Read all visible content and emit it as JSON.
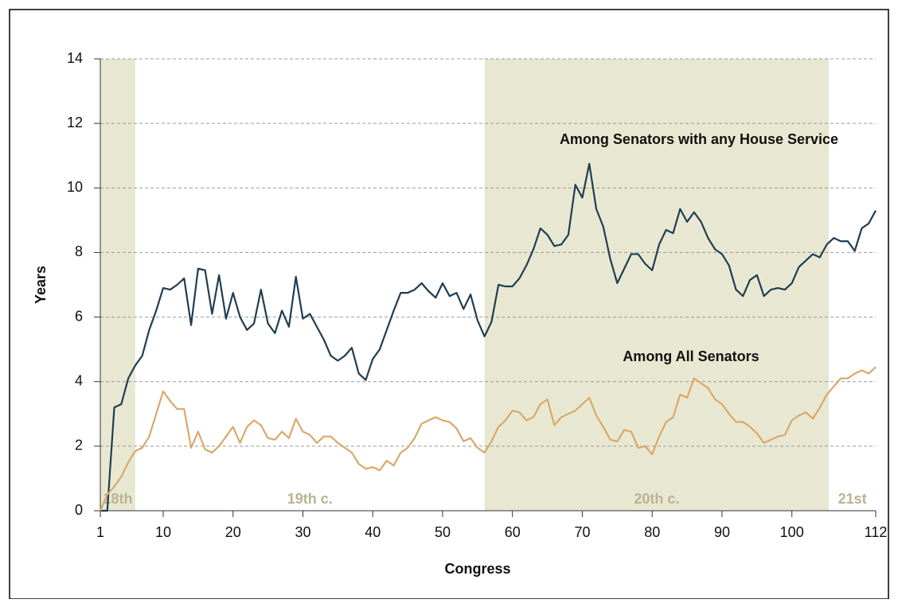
{
  "chart_data": {
    "type": "line",
    "x_label": "Congress",
    "y_label": "Years",
    "x": [
      1,
      2,
      3,
      4,
      5,
      6,
      7,
      8,
      9,
      10,
      11,
      12,
      13,
      14,
      15,
      16,
      17,
      18,
      19,
      20,
      21,
      22,
      23,
      24,
      25,
      26,
      27,
      28,
      29,
      30,
      31,
      32,
      33,
      34,
      35,
      36,
      37,
      38,
      39,
      40,
      41,
      42,
      43,
      44,
      45,
      46,
      47,
      48,
      49,
      50,
      51,
      52,
      53,
      54,
      55,
      56,
      57,
      58,
      59,
      60,
      61,
      62,
      63,
      64,
      65,
      66,
      67,
      68,
      69,
      70,
      71,
      72,
      73,
      74,
      75,
      76,
      77,
      78,
      79,
      80,
      81,
      82,
      83,
      84,
      85,
      86,
      87,
      88,
      89,
      90,
      91,
      92,
      93,
      94,
      95,
      96,
      97,
      98,
      99,
      100,
      101,
      102,
      103,
      104,
      105,
      106,
      107,
      108,
      109,
      110,
      111,
      112
    ],
    "series": [
      {
        "name": "Among Senators with any House Service",
        "color": "#1f3d52",
        "values": [
          0,
          0,
          3.2,
          3.3,
          4.1,
          4.5,
          4.8,
          5.6,
          6.2,
          6.9,
          6.85,
          7.0,
          7.2,
          5.75,
          7.5,
          7.45,
          6.1,
          7.3,
          5.95,
          6.75,
          6.0,
          5.6,
          5.8,
          6.85,
          5.8,
          5.5,
          6.2,
          5.7,
          7.25,
          5.95,
          6.1,
          5.7,
          5.3,
          4.8,
          4.65,
          4.8,
          5.05,
          4.25,
          4.05,
          4.7,
          5.0,
          5.6,
          6.2,
          6.75,
          6.75,
          6.85,
          7.05,
          6.8,
          6.6,
          7.05,
          6.65,
          6.75,
          6.25,
          6.7,
          5.9,
          5.4,
          5.85,
          7.0,
          6.95,
          6.95,
          7.2,
          7.6,
          8.1,
          8.75,
          8.55,
          8.2,
          8.25,
          8.55,
          10.1,
          9.7,
          10.75,
          9.35,
          8.8,
          7.8,
          7.05,
          7.5,
          7.95,
          7.95,
          7.65,
          7.45,
          8.25,
          8.7,
          8.6,
          9.35,
          8.95,
          9.25,
          8.95,
          8.45,
          8.1,
          7.95,
          7.6,
          6.85,
          6.65,
          7.15,
          7.3,
          6.65,
          6.85,
          6.9,
          6.85,
          7.05,
          7.55,
          7.75,
          7.95,
          7.85,
          8.25,
          8.45,
          8.35,
          8.35,
          8.05,
          8.75,
          8.9,
          9.3
        ]
      },
      {
        "name": "Among All Senators",
        "color": "#d9a86a",
        "values": [
          0,
          0.5,
          0.75,
          1.05,
          1.5,
          1.85,
          1.95,
          2.3,
          3.0,
          3.7,
          3.4,
          3.15,
          3.15,
          1.95,
          2.45,
          1.9,
          1.8,
          2.0,
          2.3,
          2.6,
          2.1,
          2.6,
          2.8,
          2.65,
          2.25,
          2.2,
          2.45,
          2.25,
          2.85,
          2.45,
          2.35,
          2.1,
          2.3,
          2.3,
          2.1,
          1.95,
          1.8,
          1.45,
          1.3,
          1.35,
          1.25,
          1.55,
          1.4,
          1.8,
          1.95,
          2.25,
          2.7,
          2.8,
          2.9,
          2.8,
          2.75,
          2.55,
          2.15,
          2.25,
          1.95,
          1.8,
          2.15,
          2.6,
          2.8,
          3.1,
          3.05,
          2.8,
          2.9,
          3.3,
          3.45,
          2.65,
          2.9,
          3.0,
          3.1,
          3.3,
          3.5,
          2.95,
          2.6,
          2.2,
          2.15,
          2.5,
          2.45,
          1.95,
          2.0,
          1.75,
          2.3,
          2.75,
          2.9,
          3.6,
          3.5,
          4.1,
          3.95,
          3.8,
          3.45,
          3.3,
          3.0,
          2.75,
          2.75,
          2.6,
          2.4,
          2.1,
          2.2,
          2.3,
          2.35,
          2.8,
          2.95,
          3.05,
          2.85,
          3.2,
          3.6,
          3.85,
          4.1,
          4.1,
          4.25,
          4.35,
          4.25,
          4.45
        ]
      }
    ],
    "bands": [
      {
        "label": "18th",
        "start": 1,
        "end": 6,
        "shaded": true
      },
      {
        "label": "19th c.",
        "start": 6,
        "end": 56,
        "shaded": false
      },
      {
        "label": "20th c.",
        "start": 56,
        "end": 105.3,
        "shaded": true
      },
      {
        "label": "21st",
        "start": 105.3,
        "end": 112,
        "shaded": false
      }
    ],
    "band_color": "#e8e8d2",
    "band_label_color": "#b8b392",
    "xlim": [
      1,
      112
    ],
    "xticks": [
      1,
      10,
      20,
      30,
      40,
      50,
      60,
      70,
      80,
      90,
      100,
      112
    ],
    "ylim": [
      0,
      14
    ],
    "yticks": [
      0,
      2,
      4,
      6,
      8,
      10,
      12,
      14
    ],
    "grid": true
  }
}
